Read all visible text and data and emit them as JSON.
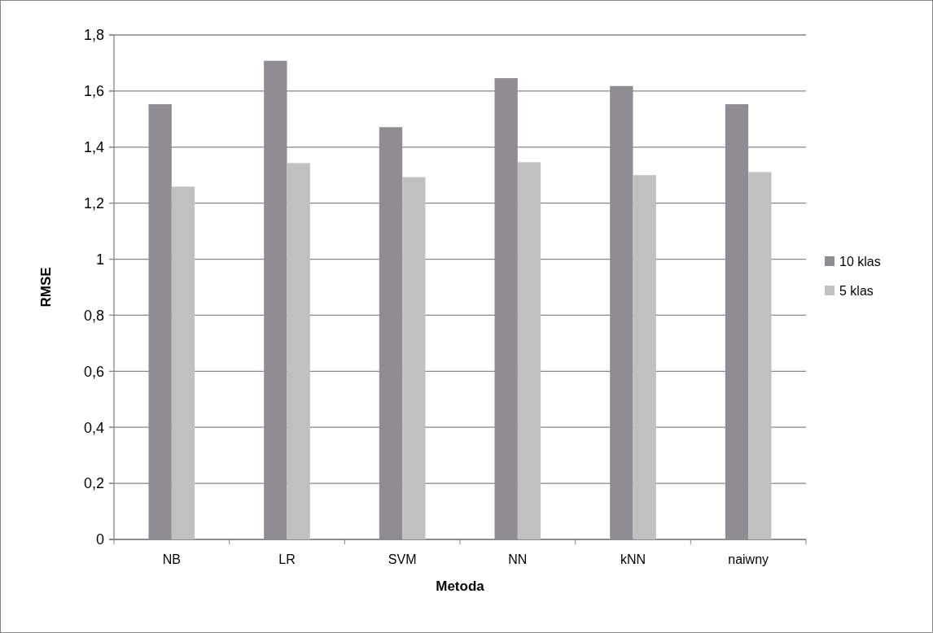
{
  "chart_data": {
    "type": "bar",
    "xlabel": "Metoda",
    "ylabel": "RMSE",
    "categories": [
      "NB",
      "LR",
      "SVM",
      "NN",
      "kNN",
      "naiwny"
    ],
    "series": [
      {
        "name": "10 klas",
        "color": "#8f8c94",
        "values": [
          1.553,
          1.708,
          1.471,
          1.646,
          1.618,
          1.553
        ]
      },
      {
        "name": "5 klas",
        "color": "#c0c0c0",
        "values": [
          1.259,
          1.343,
          1.293,
          1.346,
          1.3,
          1.311
        ]
      }
    ],
    "ylim": [
      0,
      1.8
    ],
    "yticks": [
      {
        "value": 0,
        "label": "0"
      },
      {
        "value": 0.2,
        "label": "0,2"
      },
      {
        "value": 0.4,
        "label": "0,4"
      },
      {
        "value": 0.6,
        "label": "0,6"
      },
      {
        "value": 0.8,
        "label": "0,8"
      },
      {
        "value": 1,
        "label": "1"
      },
      {
        "value": 1.2,
        "label": "1,2"
      },
      {
        "value": 1.4,
        "label": "1,4"
      },
      {
        "value": 1.6,
        "label": "1,6"
      },
      {
        "value": 1.8,
        "label": "1,8"
      }
    ],
    "grid": "y",
    "legend": "right"
  }
}
